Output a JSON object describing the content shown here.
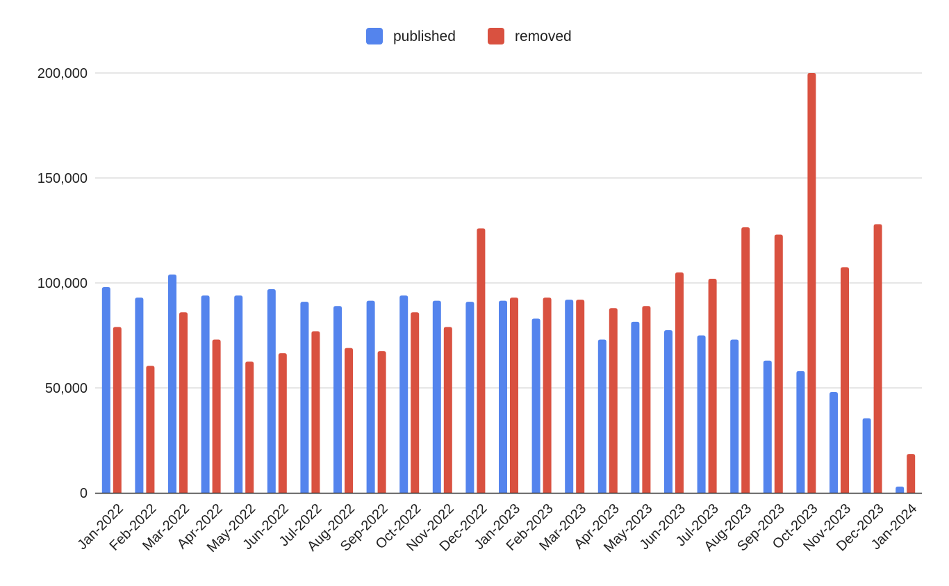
{
  "chart_data": {
    "type": "bar",
    "title": "",
    "xlabel": "",
    "ylabel": "",
    "ylim": [
      0,
      200000
    ],
    "yticks": [
      0,
      50000,
      100000,
      150000,
      200000
    ],
    "ytick_labels": [
      "0",
      "50,000",
      "100,000",
      "150,000",
      "200,000"
    ],
    "grid": true,
    "legend": "top-center",
    "categories": [
      "Jan-2022",
      "Feb-2022",
      "Mar-2022",
      "Apr-2022",
      "May-2022",
      "Jun-2022",
      "Jul-2022",
      "Aug-2022",
      "Sep-2022",
      "Oct-2022",
      "Nov-2022",
      "Dec-2022",
      "Jan-2023",
      "Feb-2023",
      "Mar-2023",
      "Apr-2023",
      "May-2023",
      "Jun-2023",
      "Jul-2023",
      "Aug-2023",
      "Sep-2023",
      "Oct-2023",
      "Nov-2023",
      "Dec-2023",
      "Jan-2024"
    ],
    "series": [
      {
        "name": "published",
        "color": "#5484ed",
        "values": [
          98000,
          93000,
          104000,
          94000,
          94000,
          97000,
          91000,
          89000,
          91500,
          94000,
          91500,
          91000,
          91500,
          83000,
          92000,
          73000,
          81500,
          77500,
          75000,
          73000,
          63000,
          58000,
          48000,
          35500,
          3000
        ]
      },
      {
        "name": "removed",
        "color": "#d95140",
        "values": [
          79000,
          60500,
          86000,
          73000,
          62500,
          66500,
          77000,
          69000,
          67500,
          86000,
          79000,
          126000,
          93000,
          93000,
          92000,
          88000,
          89000,
          105000,
          102000,
          126500,
          123000,
          200000,
          107500,
          128000,
          18500
        ]
      }
    ]
  }
}
